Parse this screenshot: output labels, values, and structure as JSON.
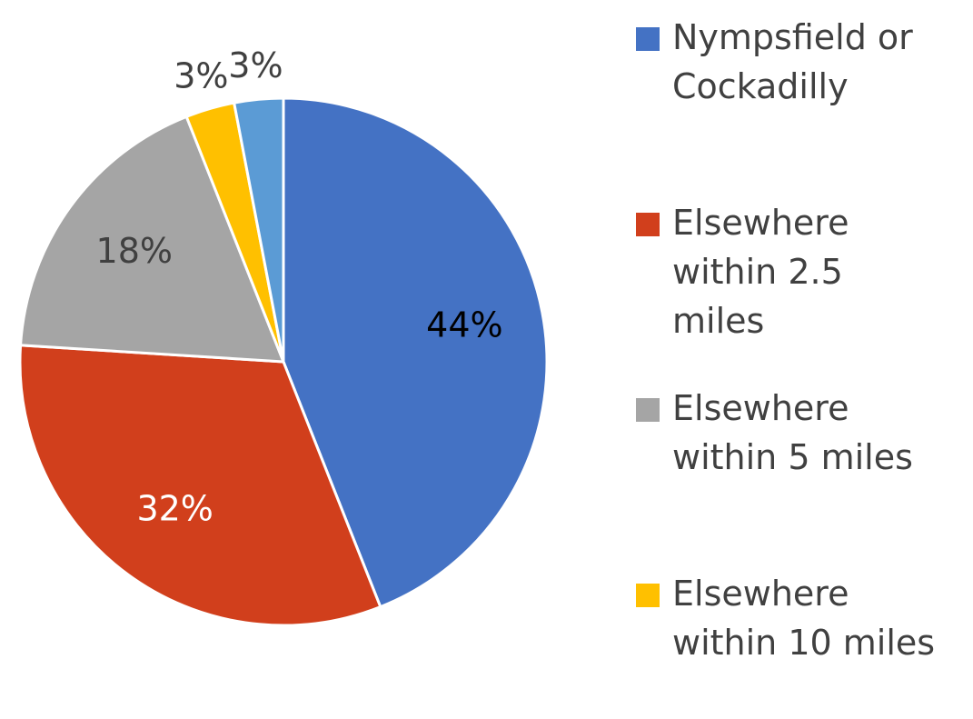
{
  "chart_data": {
    "type": "pie",
    "categories": [
      "Nympsfield or Cockadilly",
      "Elsewhere within 2.5 miles",
      "Elsewhere within 5 miles",
      "Elsewhere within 10 miles",
      null
    ],
    "values": [
      44,
      32,
      18,
      3,
      3
    ],
    "value_labels": [
      "44%",
      "32%",
      "18%",
      "3%",
      "3%"
    ],
    "colors": [
      "#4472c4",
      "#d13f1c",
      "#a5a5a5",
      "#ffc000",
      "#5b9bd5"
    ],
    "label_colors": [
      "#000000",
      "#ffffff",
      "#404040",
      "#404040",
      "#404040"
    ],
    "start_angle": 0,
    "direction": "clockwise",
    "legend": "right"
  }
}
